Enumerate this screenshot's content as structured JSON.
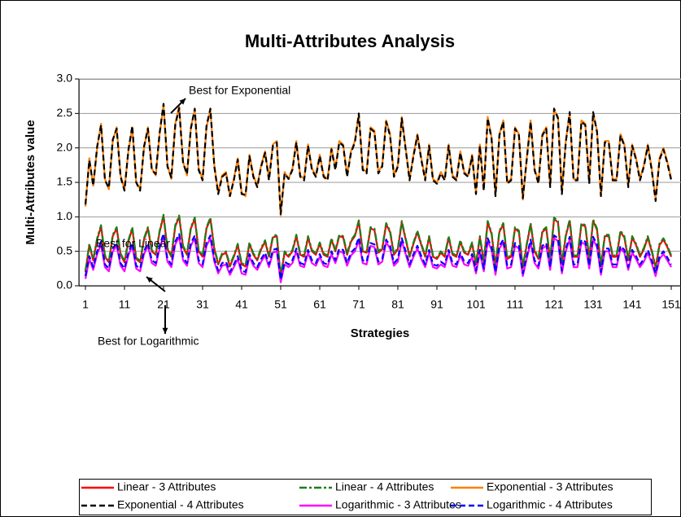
{
  "chart_data": {
    "type": "line",
    "title": "Multi-Attributes Analysis",
    "x_label": "Strategies",
    "y_label": "Multi-Attributes value",
    "xlim": [
      0.4,
      153.5
    ],
    "xticks": [
      1,
      11,
      21,
      31,
      41,
      51,
      61,
      71,
      81,
      91,
      101,
      111,
      121,
      131,
      141,
      151
    ],
    "ylim": [
      0,
      3
    ],
    "yticks": [
      {
        "value": 0,
        "label": "0.0"
      },
      0.5,
      {
        "value": 1,
        "label": "1.0"
      },
      1.5,
      {
        "value": 2,
        "label": "2.0"
      },
      2.5,
      {
        "value": 3,
        "label": "3.0"
      }
    ],
    "grid": true,
    "legend": "bottom",
    "annotations": [
      {
        "text": "Best for Exponential"
      },
      {
        "text": "Best for Linear"
      },
      {
        "text": "Best for Logarithmic"
      }
    ],
    "x": [
      1,
      2,
      3,
      4,
      5,
      6,
      7,
      8,
      9,
      10,
      11,
      12,
      13,
      14,
      15,
      16,
      17,
      18,
      19,
      20,
      21,
      22,
      23,
      24,
      25,
      26,
      27,
      28,
      29,
      30,
      31,
      32,
      33,
      34,
      35,
      36,
      37,
      38,
      39,
      40,
      41,
      42,
      43,
      44,
      45,
      46,
      47,
      48,
      49,
      50,
      51,
      52,
      53,
      54,
      55,
      56,
      57,
      58,
      59,
      60,
      61,
      62,
      63,
      64,
      65,
      66,
      67,
      68,
      69,
      70,
      71,
      72,
      73,
      74,
      75,
      76,
      77,
      78,
      79,
      80,
      81,
      82,
      83,
      84,
      85,
      86,
      87,
      88,
      89,
      90,
      91,
      92,
      93,
      94,
      95,
      96,
      97,
      98,
      99,
      100,
      101,
      102,
      103,
      104,
      105,
      106,
      107,
      108,
      109,
      110,
      111,
      112,
      113,
      114,
      115,
      116,
      117,
      118,
      119,
      120,
      121,
      122,
      123,
      124,
      125,
      126,
      127,
      128,
      129,
      130,
      131,
      132,
      133,
      134,
      135,
      136,
      137,
      138,
      139,
      140,
      141,
      142,
      143,
      144,
      145,
      146,
      147,
      148,
      149,
      150,
      151
    ],
    "series": [
      {
        "name": "Linear - 3 Attributes",
        "color": "#ff0000",
        "style": "solid",
        "values": [
          0.2,
          0.59,
          0.37,
          0.67,
          0.86,
          0.42,
          0.34,
          0.72,
          0.83,
          0.45,
          0.34,
          0.64,
          0.83,
          0.39,
          0.34,
          0.67,
          0.83,
          0.5,
          0.45,
          0.78,
          1.01,
          0.53,
          0.42,
          0.86,
          1.0,
          0.56,
          0.45,
          0.83,
          0.97,
          0.5,
          0.42,
          0.83,
          0.97,
          0.53,
          0.31,
          0.45,
          0.48,
          0.28,
          0.42,
          0.59,
          0.31,
          0.28,
          0.61,
          0.45,
          0.37,
          0.53,
          0.64,
          0.42,
          0.7,
          0.72,
          0.13,
          0.48,
          0.42,
          0.5,
          0.72,
          0.45,
          0.42,
          0.7,
          0.5,
          0.45,
          0.61,
          0.45,
          0.42,
          0.67,
          0.5,
          0.72,
          0.7,
          0.45,
          0.64,
          0.72,
          0.93,
          0.5,
          0.48,
          0.83,
          0.81,
          0.48,
          0.53,
          0.89,
          0.78,
          0.45,
          0.53,
          0.92,
          0.67,
          0.42,
          0.61,
          0.78,
          0.59,
          0.42,
          0.7,
          0.42,
          0.39,
          0.48,
          0.42,
          0.7,
          0.45,
          0.42,
          0.64,
          0.48,
          0.45,
          0.61,
          0.31,
          0.7,
          0.34,
          0.92,
          0.75,
          0.28,
          0.78,
          0.89,
          0.39,
          0.42,
          0.83,
          0.78,
          0.26,
          0.59,
          0.89,
          0.5,
          0.39,
          0.78,
          0.83,
          0.37,
          0.97,
          0.92,
          0.31,
          0.72,
          0.94,
          0.42,
          0.42,
          0.89,
          0.86,
          0.39,
          0.94,
          0.81,
          0.28,
          0.72,
          0.72,
          0.42,
          0.42,
          0.78,
          0.7,
          0.37,
          0.7,
          0.59,
          0.42,
          0.53,
          0.7,
          0.5,
          0.26,
          0.59,
          0.67,
          0.56,
          0.42
        ]
      },
      {
        "name": "Linear - 4 Attributes",
        "color": "#1a7f1a",
        "style": "dashdot",
        "values": [
          0.22,
          0.61,
          0.39,
          0.69,
          0.88,
          0.44,
          0.36,
          0.74,
          0.85,
          0.47,
          0.36,
          0.66,
          0.85,
          0.41,
          0.36,
          0.69,
          0.85,
          0.52,
          0.47,
          0.8,
          1.03,
          0.55,
          0.44,
          0.88,
          1.02,
          0.58,
          0.47,
          0.85,
          0.99,
          0.52,
          0.44,
          0.85,
          0.99,
          0.55,
          0.33,
          0.47,
          0.5,
          0.3,
          0.44,
          0.61,
          0.33,
          0.3,
          0.63,
          0.47,
          0.39,
          0.55,
          0.66,
          0.44,
          0.72,
          0.74,
          0.15,
          0.5,
          0.44,
          0.52,
          0.74,
          0.47,
          0.44,
          0.72,
          0.52,
          0.47,
          0.63,
          0.47,
          0.44,
          0.69,
          0.52,
          0.74,
          0.72,
          0.47,
          0.66,
          0.74,
          0.95,
          0.52,
          0.5,
          0.85,
          0.83,
          0.5,
          0.55,
          0.91,
          0.8,
          0.47,
          0.55,
          0.94,
          0.69,
          0.44,
          0.63,
          0.8,
          0.61,
          0.44,
          0.72,
          0.44,
          0.41,
          0.5,
          0.44,
          0.72,
          0.47,
          0.44,
          0.66,
          0.5,
          0.47,
          0.63,
          0.33,
          0.72,
          0.36,
          0.94,
          0.77,
          0.3,
          0.8,
          0.91,
          0.41,
          0.44,
          0.85,
          0.8,
          0.28,
          0.61,
          0.91,
          0.52,
          0.41,
          0.8,
          0.85,
          0.39,
          0.99,
          0.94,
          0.33,
          0.74,
          0.96,
          0.44,
          0.44,
          0.91,
          0.88,
          0.41,
          0.96,
          0.83,
          0.3,
          0.74,
          0.74,
          0.44,
          0.44,
          0.8,
          0.72,
          0.39,
          0.72,
          0.61,
          0.44,
          0.55,
          0.72,
          0.52,
          0.28,
          0.61,
          0.69,
          0.58,
          0.44
        ]
      },
      {
        "name": "Exponential - 3 Attributes",
        "color": "#ff8000",
        "style": "solid",
        "values": [
          1.15,
          1.85,
          1.45,
          2.0,
          2.35,
          1.55,
          1.4,
          2.1,
          2.3,
          1.6,
          1.4,
          1.95,
          2.3,
          1.5,
          1.4,
          2.0,
          2.3,
          1.7,
          1.6,
          2.2,
          2.62,
          1.75,
          1.55,
          2.35,
          2.6,
          1.8,
          1.6,
          2.3,
          2.55,
          1.7,
          1.55,
          2.3,
          2.55,
          1.75,
          1.35,
          1.6,
          1.65,
          1.3,
          1.55,
          1.85,
          1.35,
          1.3,
          1.9,
          1.6,
          1.45,
          1.75,
          1.95,
          1.55,
          2.05,
          2.1,
          1.02,
          1.65,
          1.55,
          1.7,
          2.1,
          1.6,
          1.55,
          2.05,
          1.7,
          1.6,
          1.9,
          1.6,
          1.55,
          2.0,
          1.7,
          2.1,
          2.05,
          1.6,
          1.95,
          2.1,
          2.48,
          1.7,
          1.65,
          2.3,
          2.25,
          1.65,
          1.75,
          2.4,
          2.2,
          1.6,
          1.75,
          2.45,
          2.0,
          1.55,
          1.9,
          2.2,
          1.85,
          1.55,
          2.05,
          1.55,
          1.5,
          1.65,
          1.55,
          2.05,
          1.6,
          1.55,
          1.95,
          1.65,
          1.6,
          1.9,
          1.35,
          2.05,
          1.4,
          2.45,
          2.15,
          1.3,
          2.2,
          2.4,
          1.5,
          1.55,
          2.3,
          2.2,
          1.25,
          1.85,
          2.4,
          1.7,
          1.5,
          2.2,
          2.3,
          1.45,
          2.55,
          2.45,
          1.35,
          2.1,
          2.5,
          1.55,
          1.55,
          2.4,
          2.35,
          1.5,
          2.5,
          2.25,
          1.3,
          2.1,
          2.1,
          1.55,
          1.55,
          2.2,
          2.05,
          1.45,
          2.05,
          1.85,
          1.55,
          1.75,
          2.05,
          1.7,
          1.25,
          1.85,
          2.0,
          1.8,
          1.55
        ]
      },
      {
        "name": "Exponential - 4 Attributes",
        "color": "#000000",
        "style": "dashed",
        "values": [
          1.18,
          1.82,
          1.45,
          2.02,
          2.33,
          1.53,
          1.42,
          2.12,
          2.28,
          1.58,
          1.38,
          1.97,
          2.32,
          1.5,
          1.38,
          2.02,
          2.28,
          1.68,
          1.62,
          2.22,
          2.64,
          1.73,
          1.57,
          2.33,
          2.58,
          1.78,
          1.62,
          2.28,
          2.57,
          1.68,
          1.53,
          2.32,
          2.57,
          1.73,
          1.33,
          1.58,
          1.63,
          1.3,
          1.53,
          1.83,
          1.33,
          1.32,
          1.88,
          1.58,
          1.43,
          1.73,
          1.93,
          1.53,
          2.03,
          2.08,
          1.04,
          1.63,
          1.55,
          1.68,
          2.08,
          1.58,
          1.53,
          2.03,
          1.68,
          1.58,
          1.88,
          1.58,
          1.53,
          1.98,
          1.68,
          2.08,
          2.03,
          1.58,
          1.93,
          2.08,
          2.5,
          1.68,
          1.63,
          2.28,
          2.23,
          1.63,
          1.73,
          2.38,
          2.18,
          1.58,
          1.73,
          2.43,
          1.98,
          1.53,
          1.88,
          2.18,
          1.83,
          1.53,
          2.03,
          1.53,
          1.48,
          1.63,
          1.53,
          2.03,
          1.58,
          1.53,
          1.93,
          1.63,
          1.58,
          1.88,
          1.33,
          2.03,
          1.38,
          2.43,
          2.13,
          1.3,
          2.18,
          2.38,
          1.48,
          1.53,
          2.28,
          2.18,
          1.27,
          1.83,
          2.38,
          1.68,
          1.48,
          2.18,
          2.28,
          1.43,
          2.57,
          2.43,
          1.33,
          2.08,
          2.52,
          1.53,
          1.53,
          2.38,
          2.33,
          1.48,
          2.52,
          2.23,
          1.3,
          2.08,
          2.08,
          1.53,
          1.53,
          2.18,
          2.03,
          1.43,
          2.03,
          1.83,
          1.53,
          1.73,
          2.03,
          1.68,
          1.23,
          1.83,
          1.98,
          1.78,
          1.53
        ]
      },
      {
        "name": "Logarithmic - 3 Attributes",
        "color": "#ff00ff",
        "style": "solid",
        "values": [
          0.1,
          0.39,
          0.23,
          0.46,
          0.6,
          0.27,
          0.21,
          0.5,
          0.58,
          0.29,
          0.21,
          0.44,
          0.58,
          0.25,
          0.21,
          0.46,
          0.58,
          0.33,
          0.29,
          0.54,
          0.72,
          0.35,
          0.27,
          0.6,
          0.71,
          0.37,
          0.29,
          0.58,
          0.69,
          0.33,
          0.27,
          0.58,
          0.69,
          0.35,
          0.18,
          0.29,
          0.31,
          0.16,
          0.27,
          0.39,
          0.18,
          0.16,
          0.42,
          0.29,
          0.23,
          0.35,
          0.44,
          0.27,
          0.48,
          0.5,
          0.05,
          0.31,
          0.27,
          0.33,
          0.5,
          0.29,
          0.27,
          0.48,
          0.33,
          0.29,
          0.42,
          0.29,
          0.27,
          0.46,
          0.33,
          0.5,
          0.48,
          0.29,
          0.44,
          0.5,
          0.66,
          0.33,
          0.31,
          0.58,
          0.56,
          0.31,
          0.35,
          0.63,
          0.54,
          0.29,
          0.35,
          0.65,
          0.46,
          0.27,
          0.42,
          0.54,
          0.39,
          0.27,
          0.48,
          0.27,
          0.25,
          0.31,
          0.27,
          0.48,
          0.29,
          0.27,
          0.44,
          0.31,
          0.29,
          0.42,
          0.18,
          0.48,
          0.21,
          0.65,
          0.52,
          0.16,
          0.54,
          0.63,
          0.25,
          0.27,
          0.58,
          0.54,
          0.14,
          0.39,
          0.63,
          0.33,
          0.25,
          0.54,
          0.58,
          0.23,
          0.69,
          0.65,
          0.18,
          0.5,
          0.67,
          0.27,
          0.27,
          0.63,
          0.6,
          0.25,
          0.67,
          0.56,
          0.16,
          0.5,
          0.5,
          0.27,
          0.27,
          0.54,
          0.48,
          0.23,
          0.48,
          0.39,
          0.27,
          0.35,
          0.48,
          0.33,
          0.14,
          0.39,
          0.46,
          0.37,
          0.27
        ]
      },
      {
        "name": "Logarithmic - 4 Attributes",
        "color": "#0000ff",
        "style": "dashed",
        "values": [
          0.14,
          0.43,
          0.27,
          0.5,
          0.64,
          0.31,
          0.25,
          0.54,
          0.62,
          0.33,
          0.25,
          0.48,
          0.62,
          0.29,
          0.25,
          0.5,
          0.62,
          0.37,
          0.33,
          0.58,
          0.76,
          0.39,
          0.31,
          0.64,
          0.75,
          0.41,
          0.33,
          0.62,
          0.73,
          0.37,
          0.31,
          0.62,
          0.73,
          0.39,
          0.22,
          0.33,
          0.35,
          0.2,
          0.31,
          0.43,
          0.22,
          0.2,
          0.46,
          0.33,
          0.27,
          0.39,
          0.48,
          0.31,
          0.52,
          0.54,
          0.09,
          0.35,
          0.31,
          0.37,
          0.54,
          0.33,
          0.31,
          0.52,
          0.37,
          0.33,
          0.46,
          0.33,
          0.31,
          0.5,
          0.37,
          0.54,
          0.52,
          0.33,
          0.48,
          0.54,
          0.7,
          0.37,
          0.35,
          0.62,
          0.6,
          0.35,
          0.39,
          0.67,
          0.58,
          0.33,
          0.39,
          0.69,
          0.5,
          0.31,
          0.46,
          0.58,
          0.43,
          0.31,
          0.52,
          0.31,
          0.29,
          0.35,
          0.31,
          0.52,
          0.33,
          0.31,
          0.48,
          0.35,
          0.33,
          0.46,
          0.22,
          0.52,
          0.25,
          0.69,
          0.56,
          0.2,
          0.58,
          0.67,
          0.29,
          0.31,
          0.62,
          0.58,
          0.18,
          0.43,
          0.67,
          0.37,
          0.29,
          0.58,
          0.62,
          0.27,
          0.73,
          0.69,
          0.22,
          0.54,
          0.71,
          0.31,
          0.31,
          0.67,
          0.64,
          0.29,
          0.71,
          0.6,
          0.2,
          0.54,
          0.54,
          0.31,
          0.31,
          0.58,
          0.52,
          0.27,
          0.52,
          0.43,
          0.31,
          0.39,
          0.52,
          0.37,
          0.18,
          0.43,
          0.5,
          0.41,
          0.31
        ]
      }
    ]
  }
}
